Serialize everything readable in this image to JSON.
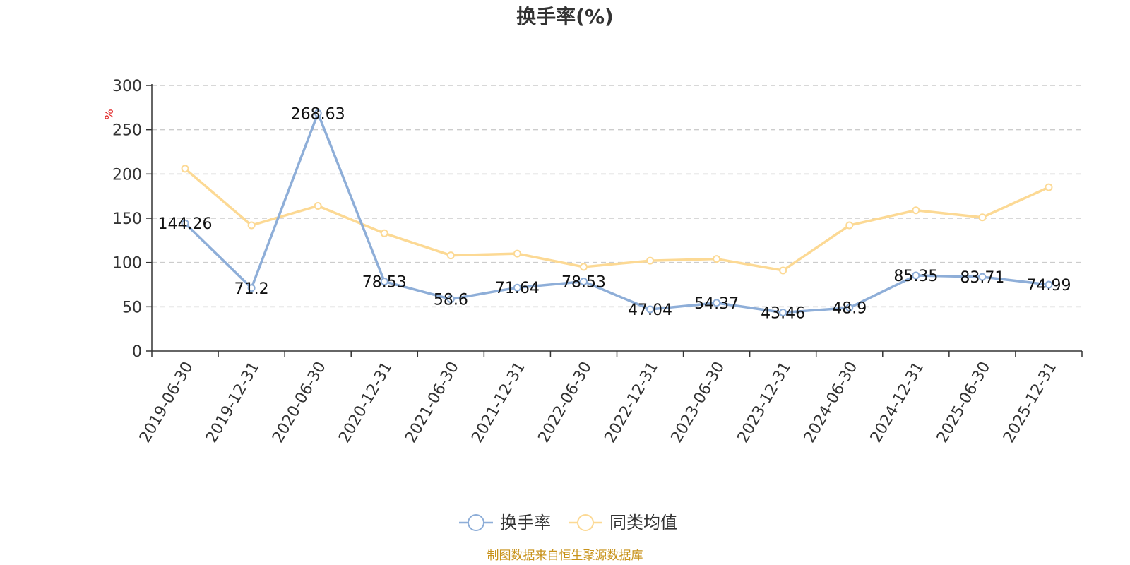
{
  "chart_data": {
    "type": "line",
    "title": "换手率(%)",
    "ylabel": "%",
    "ylim": [
      0,
      300
    ],
    "yticks": [
      0,
      50,
      100,
      150,
      200,
      250,
      300
    ],
    "grid": true,
    "legend_position": "bottom-center",
    "categories": [
      "2019-06-30",
      "2019-12-31",
      "2020-06-30",
      "2020-12-31",
      "2021-06-30",
      "2021-12-31",
      "2022-06-30",
      "2022-12-31",
      "2023-06-30",
      "2023-12-31",
      "2024-06-30",
      "2024-12-31",
      "2025-06-30",
      "2025-12-31"
    ],
    "series": [
      {
        "name": "换手率",
        "color": "#8eaed8",
        "values": [
          144.26,
          71.2,
          268.63,
          78.53,
          58.6,
          71.64,
          78.53,
          47.04,
          54.37,
          43.46,
          48.9,
          85.35,
          83.71,
          74.99
        ],
        "labels": [
          "144.26",
          "71.2",
          "268.63",
          "78.53",
          "58.6",
          "71.64",
          "78.53",
          "47.04",
          "54.37",
          "43.46",
          "48.9",
          "85.35",
          "83.71",
          "74.99"
        ]
      },
      {
        "name": "同类均值",
        "color": "#fcd994",
        "values": [
          206,
          142,
          164,
          133,
          108,
          110,
          95,
          102,
          104,
          91,
          142,
          159,
          151,
          185
        ]
      }
    ]
  },
  "source_text": "制图数据来自恒生聚源数据库"
}
